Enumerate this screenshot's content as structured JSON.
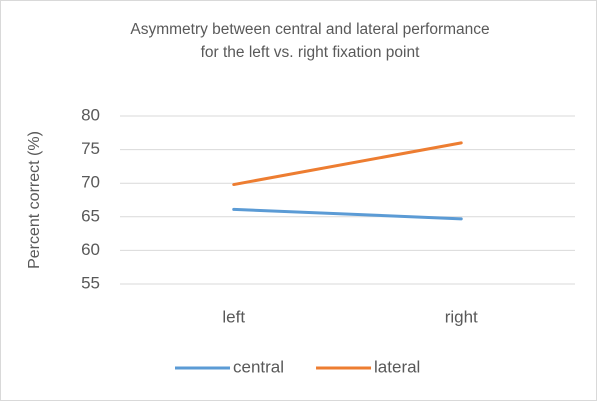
{
  "chart_data": {
    "type": "line",
    "title": [
      "Asymmetry between central and lateral performance",
      "for the left vs. right fixation point"
    ],
    "y_label": "Percent correct (%)",
    "categories": [
      "left",
      "right"
    ],
    "series": [
      {
        "name": "central",
        "color": "#5b9bd5",
        "values": [
          66.1,
          64.7
        ]
      },
      {
        "name": "lateral",
        "color": "#ed7d31",
        "values": [
          69.8,
          76.0
        ]
      }
    ],
    "ylim": [
      55,
      80
    ],
    "yticks": [
      55,
      60,
      65,
      70,
      75,
      80
    ],
    "grid": true,
    "legend": "bottom"
  }
}
